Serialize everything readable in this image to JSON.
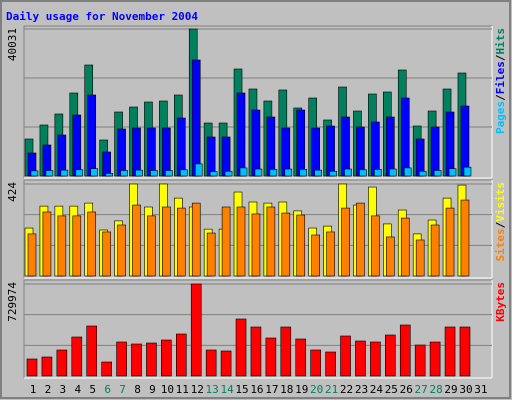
{
  "chart_data": [
    {
      "type": "bar",
      "title": "Daily usage for November 2004",
      "categories": [
        "1",
        "2",
        "3",
        "4",
        "5",
        "6",
        "7",
        "8",
        "9",
        "10",
        "11",
        "12",
        "13",
        "14",
        "15",
        "16",
        "17",
        "18",
        "19",
        "20",
        "21",
        "22",
        "23",
        "24",
        "25",
        "26",
        "27",
        "28",
        "29",
        "30",
        "31"
      ],
      "weekend_days": [
        "6",
        "7",
        "13",
        "14",
        "20",
        "21",
        "27",
        "28"
      ],
      "weekend_color": "#00805c",
      "series": [
        {
          "name": "Hits",
          "color": "#00805c",
          "values": [
            10076,
            13888,
            16884,
            22603,
            30228,
            9804,
            17429,
            18790,
            20152,
            20424,
            22058,
            40031,
            14433,
            14433,
            29138,
            23692,
            20424,
            23420,
            18518,
            21241,
            15250,
            24237,
            17701,
            22330,
            22875,
            28866,
            13616,
            17701,
            23692,
            28049,
            null
          ]
        },
        {
          "name": "Files",
          "color": "#0000ff",
          "values": [
            6263,
            8442,
            11165,
            16611,
            22058,
            6536,
            12799,
            13071,
            13071,
            13071,
            15794,
            31589,
            10620,
            10620,
            22603,
            17973,
            16067,
            13071,
            17973,
            13071,
            13616,
            16067,
            13344,
            14705,
            16067,
            21241,
            10076,
            13344,
            17429,
            19062,
            null
          ]
        },
        {
          "name": "Pages",
          "color": "#00c0ff",
          "values": [
            1400,
            1500,
            1600,
            1700,
            2000,
            700,
            1500,
            1600,
            1500,
            1500,
            1700,
            3300,
            1200,
            1300,
            2200,
            1900,
            1800,
            1900,
            1800,
            1600,
            1300,
            1900,
            1700,
            1800,
            1900,
            2200,
            1300,
            1500,
            2000,
            2400,
            null
          ]
        }
      ],
      "legend_separator": "/",
      "ylim": [
        0,
        40031
      ],
      "yticks": [
        40031
      ]
    },
    {
      "type": "bar",
      "series": [
        {
          "name": "Visits",
          "color": "#ffff00",
          "values": [
            221,
            322,
            322,
            322,
            336,
            212,
            254,
            424,
            318,
            424,
            359,
            318,
            216,
            216,
            387,
            341,
            336,
            341,
            300,
            221,
            230,
            424,
            327,
            410,
            240,
            304,
            194,
            258,
            359,
            419,
            null
          ]
        },
        {
          "name": "Sites",
          "color": "#ff8000",
          "values": [
            194,
            295,
            277,
            277,
            295,
            203,
            235,
            327,
            277,
            318,
            313,
            336,
            198,
            318,
            318,
            286,
            318,
            290,
            281,
            189,
            203,
            313,
            336,
            277,
            180,
            267,
            166,
            235,
            313,
            350,
            null
          ]
        }
      ],
      "legend_separator": "/",
      "ylim": [
        0,
        424
      ],
      "yticks": [
        424
      ]
    },
    {
      "type": "bar",
      "series": [
        {
          "name": "KBytes",
          "color": "#ff0000",
          "values": [
            134885,
            150754,
            206297,
            309445,
            396725,
            111083,
            269773,
            253904,
            261839,
            285641,
            333248,
            729974,
            206297,
            198362,
            452266,
            388790,
            301510,
            388790,
            293576,
            206297,
            190428,
            317379,
            277707,
            269773,
            325314,
            404659,
            245970,
            269773,
            388790,
            388790,
            null
          ]
        }
      ],
      "ylim": [
        0,
        729974
      ],
      "yticks": [
        729974
      ]
    }
  ]
}
